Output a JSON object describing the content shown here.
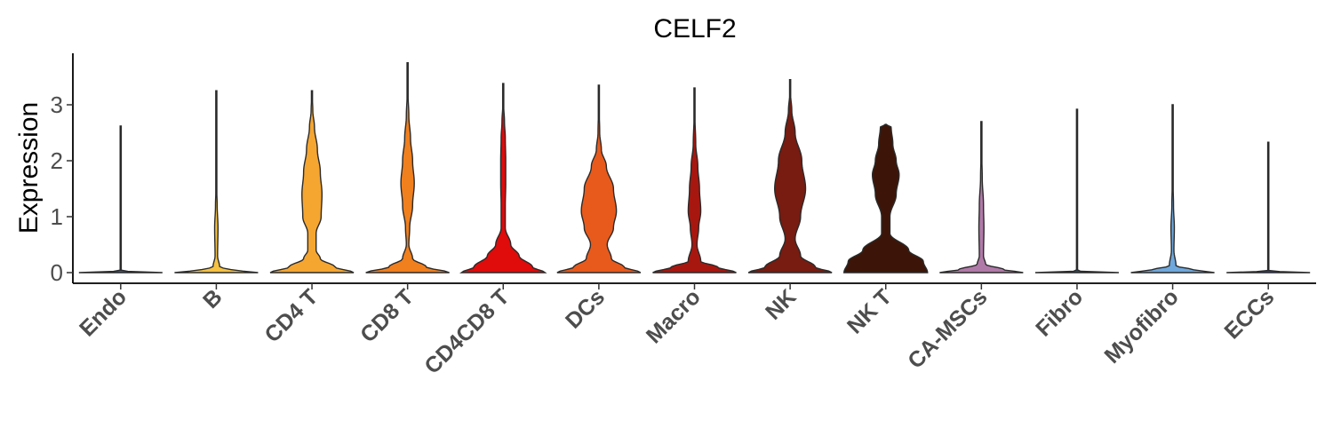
{
  "chart_data": {
    "type": "violin",
    "title": "CELF2",
    "xlabel": "",
    "ylabel": "Expression",
    "ylim": [
      -0.2,
      3.9
    ],
    "yticks": [
      "0",
      "1",
      "2",
      "3"
    ],
    "grid": false,
    "legend": "none",
    "categories": [
      "Endo",
      "B",
      "CD4 T",
      "CD8 T",
      "CD4CD8 T",
      "DCs",
      "Macro",
      "NK",
      "NK T",
      "CA-MSCs",
      "Fibro",
      "Myofibro",
      "ECCs"
    ],
    "colors": [
      "#3d5a80",
      "#f5c242",
      "#f5a631",
      "#f07f1e",
      "#e00b0b",
      "#e85a1c",
      "#a8170f",
      "#781b10",
      "#3c1508",
      "#b07aa8",
      "#2e4a5c",
      "#6fa8dc",
      "#2d3f8f"
    ],
    "violins": [
      {
        "name": "Endo",
        "max": 2.62,
        "profile": [
          [
            0,
            1.0
          ],
          [
            0.03,
            0.0
          ],
          [
            2.62,
            0.0
          ]
        ]
      },
      {
        "name": "B",
        "max": 3.25,
        "profile": [
          [
            0,
            1.0
          ],
          [
            0.05,
            0.35
          ],
          [
            0.1,
            0.08
          ],
          [
            0.3,
            0.03
          ],
          [
            0.8,
            0.04
          ],
          [
            1.2,
            0.02
          ],
          [
            1.5,
            0.01
          ],
          [
            2.0,
            0.0
          ],
          [
            3.25,
            0.0
          ]
        ]
      },
      {
        "name": "CD4 T",
        "max": 3.25,
        "profile": [
          [
            0,
            1.0
          ],
          [
            0.1,
            0.55
          ],
          [
            0.25,
            0.2
          ],
          [
            0.4,
            0.1
          ],
          [
            0.7,
            0.1
          ],
          [
            1.0,
            0.22
          ],
          [
            1.4,
            0.24
          ],
          [
            1.8,
            0.2
          ],
          [
            2.2,
            0.13
          ],
          [
            2.6,
            0.06
          ],
          [
            2.9,
            0.02
          ],
          [
            3.25,
            0.0
          ]
        ]
      },
      {
        "name": "CD8 T",
        "max": 3.75,
        "profile": [
          [
            0,
            1.0
          ],
          [
            0.1,
            0.45
          ],
          [
            0.25,
            0.12
          ],
          [
            0.5,
            0.03
          ],
          [
            0.8,
            0.05
          ],
          [
            1.2,
            0.12
          ],
          [
            1.6,
            0.16
          ],
          [
            2.0,
            0.12
          ],
          [
            2.4,
            0.07
          ],
          [
            2.8,
            0.03
          ],
          [
            3.2,
            0.01
          ],
          [
            3.75,
            0.0
          ]
        ]
      },
      {
        "name": "CD4CD8 T",
        "max": 3.38,
        "profile": [
          [
            0,
            1.0
          ],
          [
            0.1,
            0.7
          ],
          [
            0.3,
            0.38
          ],
          [
            0.5,
            0.18
          ],
          [
            0.8,
            0.05
          ],
          [
            1.2,
            0.05
          ],
          [
            1.6,
            0.06
          ],
          [
            2.0,
            0.06
          ],
          [
            2.4,
            0.05
          ],
          [
            2.7,
            0.03
          ],
          [
            3.0,
            0.01
          ],
          [
            3.38,
            0.0
          ]
        ]
      },
      {
        "name": "DCs",
        "max": 3.35,
        "profile": [
          [
            0,
            1.0
          ],
          [
            0.1,
            0.6
          ],
          [
            0.25,
            0.3
          ],
          [
            0.5,
            0.2
          ],
          [
            0.8,
            0.35
          ],
          [
            1.1,
            0.42
          ],
          [
            1.5,
            0.35
          ],
          [
            1.9,
            0.18
          ],
          [
            2.2,
            0.06
          ],
          [
            2.5,
            0.02
          ],
          [
            3.0,
            0.005
          ],
          [
            3.35,
            0.0
          ]
        ]
      },
      {
        "name": "Macro",
        "max": 3.3,
        "profile": [
          [
            0,
            1.0
          ],
          [
            0.1,
            0.55
          ],
          [
            0.2,
            0.15
          ],
          [
            0.5,
            0.06
          ],
          [
            0.8,
            0.1
          ],
          [
            1.1,
            0.15
          ],
          [
            1.5,
            0.12
          ],
          [
            1.9,
            0.08
          ],
          [
            2.3,
            0.03
          ],
          [
            2.8,
            0.01
          ],
          [
            3.3,
            0.0
          ]
        ]
      },
      {
        "name": "NK",
        "max": 3.45,
        "profile": [
          [
            0,
            1.0
          ],
          [
            0.1,
            0.6
          ],
          [
            0.3,
            0.25
          ],
          [
            0.6,
            0.12
          ],
          [
            1.0,
            0.25
          ],
          [
            1.5,
            0.37
          ],
          [
            2.0,
            0.28
          ],
          [
            2.5,
            0.12
          ],
          [
            2.9,
            0.04
          ],
          [
            3.2,
            0.01
          ],
          [
            3.45,
            0.0
          ]
        ]
      },
      {
        "name": "NK T",
        "max": 2.65,
        "profile": [
          [
            0,
            1.0
          ],
          [
            0.2,
            0.9
          ],
          [
            0.4,
            0.55
          ],
          [
            0.7,
            0.1
          ],
          [
            1.0,
            0.1
          ],
          [
            1.4,
            0.25
          ],
          [
            1.75,
            0.32
          ],
          [
            2.0,
            0.25
          ],
          [
            2.3,
            0.17
          ],
          [
            2.6,
            0.13
          ],
          [
            2.65,
            0.0
          ]
        ]
      },
      {
        "name": "CA-MSCs",
        "max": 2.7,
        "profile": [
          [
            0,
            1.0
          ],
          [
            0.05,
            0.55
          ],
          [
            0.15,
            0.1
          ],
          [
            0.3,
            0.05
          ],
          [
            0.8,
            0.06
          ],
          [
            1.2,
            0.05
          ],
          [
            1.7,
            0.02
          ],
          [
            2.2,
            0.005
          ],
          [
            2.7,
            0.0
          ]
        ]
      },
      {
        "name": "Fibro",
        "max": 2.92,
        "profile": [
          [
            0,
            1.0
          ],
          [
            0.03,
            0.0
          ],
          [
            2.92,
            0.0
          ]
        ]
      },
      {
        "name": "Myofibro",
        "max": 3.0,
        "profile": [
          [
            0,
            1.0
          ],
          [
            0.05,
            0.5
          ],
          [
            0.12,
            0.08
          ],
          [
            0.4,
            0.03
          ],
          [
            0.8,
            0.04
          ],
          [
            1.2,
            0.02
          ],
          [
            1.6,
            0.01
          ],
          [
            2.0,
            0.0
          ],
          [
            3.0,
            0.0
          ]
        ]
      },
      {
        "name": "ECCs",
        "max": 2.33,
        "profile": [
          [
            0,
            1.0
          ],
          [
            0.03,
            0.0
          ],
          [
            2.33,
            0.0
          ]
        ]
      }
    ]
  }
}
